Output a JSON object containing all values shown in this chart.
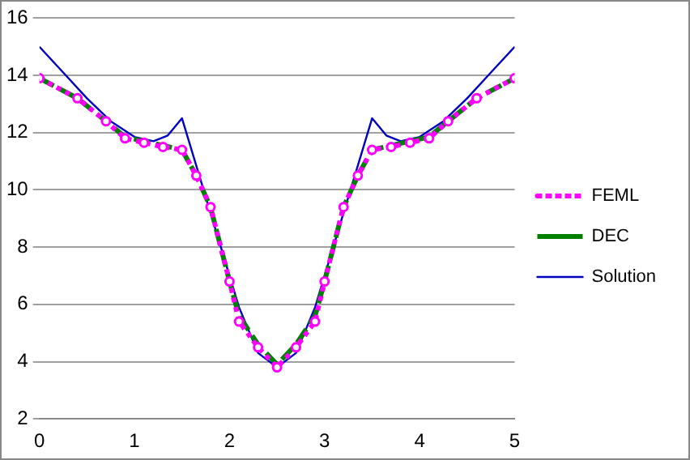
{
  "chart_data": {
    "type": "line",
    "xlim": [
      0,
      5
    ],
    "xticks": [
      0,
      1,
      2,
      3,
      4,
      5
    ],
    "ylim": [
      2,
      16
    ],
    "yticks": [
      2,
      4,
      6,
      8,
      10,
      12,
      14,
      16
    ],
    "grid": "y",
    "legend": "right",
    "series": [
      {
        "name": "FEML",
        "color": "#ff00ff",
        "line_style": "dotted",
        "marker": "circle",
        "x": [
          0,
          0.4,
          0.7,
          0.9,
          1.1,
          1.3,
          1.5,
          1.65,
          1.8,
          2,
          2.1,
          2.3,
          2.5,
          2.7,
          2.9,
          3,
          3.2,
          3.35,
          3.5,
          3.7,
          3.9,
          4.1,
          4.3,
          4.6,
          5
        ],
        "values": [
          13.9,
          13.2,
          12.4,
          11.8,
          11.65,
          11.5,
          11.4,
          10.5,
          9.4,
          6.8,
          5.4,
          4.5,
          3.8,
          4.5,
          5.4,
          6.8,
          9.4,
          10.5,
          11.4,
          11.5,
          11.65,
          11.8,
          12.4,
          13.2,
          13.9
        ]
      },
      {
        "name": "DEC",
        "color": "#008000",
        "line_style": "dashed",
        "x": [
          0,
          0.4,
          0.7,
          0.9,
          1.1,
          1.3,
          1.5,
          1.65,
          1.8,
          2,
          2.1,
          2.3,
          2.5,
          2.7,
          2.9,
          3,
          3.2,
          3.35,
          3.5,
          3.7,
          3.9,
          4.1,
          4.3,
          4.6,
          5
        ],
        "values": [
          13.9,
          13.2,
          12.4,
          11.85,
          11.7,
          11.55,
          11.4,
          10.5,
          9.4,
          6.8,
          5.6,
          4.6,
          3.9,
          4.6,
          5.6,
          6.8,
          9.4,
          10.5,
          11.4,
          11.55,
          11.7,
          11.85,
          12.4,
          13.2,
          13.9
        ]
      },
      {
        "name": "Solution",
        "color": "#0000c0",
        "line_style": "solid",
        "x": [
          0,
          0.25,
          0.5,
          0.75,
          1,
          1.2,
          1.35,
          1.5,
          1.7,
          1.9,
          2.1,
          2.3,
          2.5,
          2.7,
          2.9,
          3.1,
          3.3,
          3.5,
          3.65,
          3.8,
          4,
          4.25,
          4.5,
          4.75,
          5
        ],
        "values": [
          15,
          14.1,
          13.2,
          12.4,
          11.85,
          11.7,
          11.9,
          12.5,
          10.3,
          8.1,
          5.9,
          4.3,
          3.8,
          4.3,
          5.9,
          8.1,
          10.3,
          12.5,
          11.9,
          11.7,
          11.85,
          12.4,
          13.2,
          14.1,
          15
        ]
      }
    ]
  }
}
